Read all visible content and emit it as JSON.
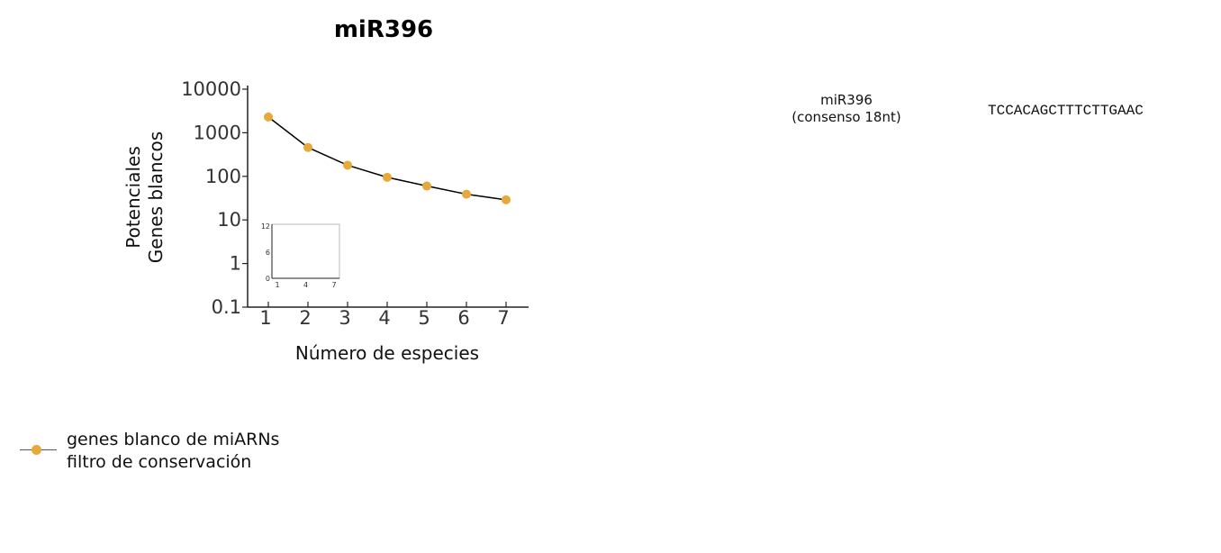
{
  "chart_data": {
    "type": "line",
    "title": "miR396",
    "xlabel": "Número de especies",
    "ylabel": [
      "Potenciales",
      "Genes blancos"
    ],
    "x": [
      1,
      2,
      3,
      4,
      5,
      6,
      7
    ],
    "series": [
      {
        "name": "genes blanco de miARNs\nfiltro de conservación",
        "values": [
          2300,
          460,
          180,
          95,
          60,
          39,
          29
        ]
      }
    ],
    "ylim": [
      0.1,
      10000
    ],
    "yscale": "log",
    "yticks": [
      "0.1",
      "1",
      "10",
      "100",
      "1000",
      "10000"
    ],
    "xticks": [
      "1",
      "2",
      "3",
      "4",
      "5",
      "6",
      "7"
    ],
    "grid": false,
    "legend_position": "bottom-left",
    "marker_color": "#e6a93a",
    "line_color": "#000000",
    "inset": {
      "xticks": [
        "1",
        "4",
        "7"
      ],
      "yticks": [
        "0",
        "6",
        "12"
      ],
      "xlim": [
        1,
        7
      ],
      "ylim": [
        0,
        12
      ],
      "values": []
    }
  },
  "annotation": {
    "label": "miR396\n(consenso 18nt)",
    "sequence": "TCCACAGCTTTCTTGAAC"
  }
}
